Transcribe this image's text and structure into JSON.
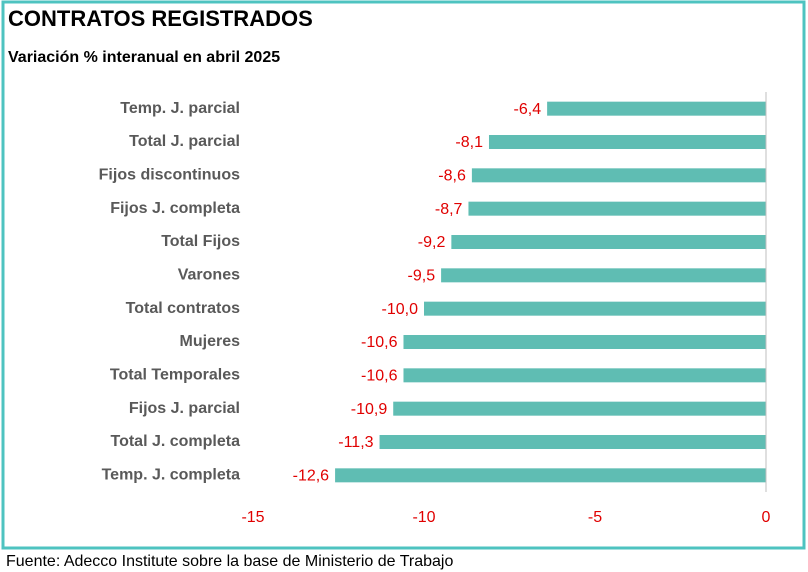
{
  "chart_data": {
    "type": "barh",
    "title": "CONTRATOS REGISTRADOS",
    "subtitle": "Variación % interanual en abril 2025",
    "source": "Fuente: Adecco Institute sobre la base de Ministerio de Trabajo",
    "categories": [
      "Temp. J. parcial",
      "Total J. parcial",
      "Fijos discontinuos",
      "Fijos J. completa",
      "Total Fijos",
      "Varones",
      "Total contratos",
      "Mujeres",
      "Total Temporales",
      "Fijos J. parcial",
      "Total J. completa",
      "Temp. J. completa"
    ],
    "values": [
      -6.4,
      -8.1,
      -8.6,
      -8.7,
      -9.2,
      -9.5,
      -10.0,
      -10.6,
      -10.6,
      -10.9,
      -11.3,
      -12.6
    ],
    "value_labels": [
      "-6,4",
      "-8,1",
      "-8,6",
      "-8,7",
      "-9,2",
      "-9,5",
      "-10,0",
      "-10,6",
      "-10,6",
      "-10,9",
      "-11,3",
      "-12,6"
    ],
    "color": "#5fbdb3",
    "xlim": [
      -15,
      0
    ],
    "xticks": [
      -15,
      -10,
      -5,
      0
    ],
    "grid": false
  }
}
